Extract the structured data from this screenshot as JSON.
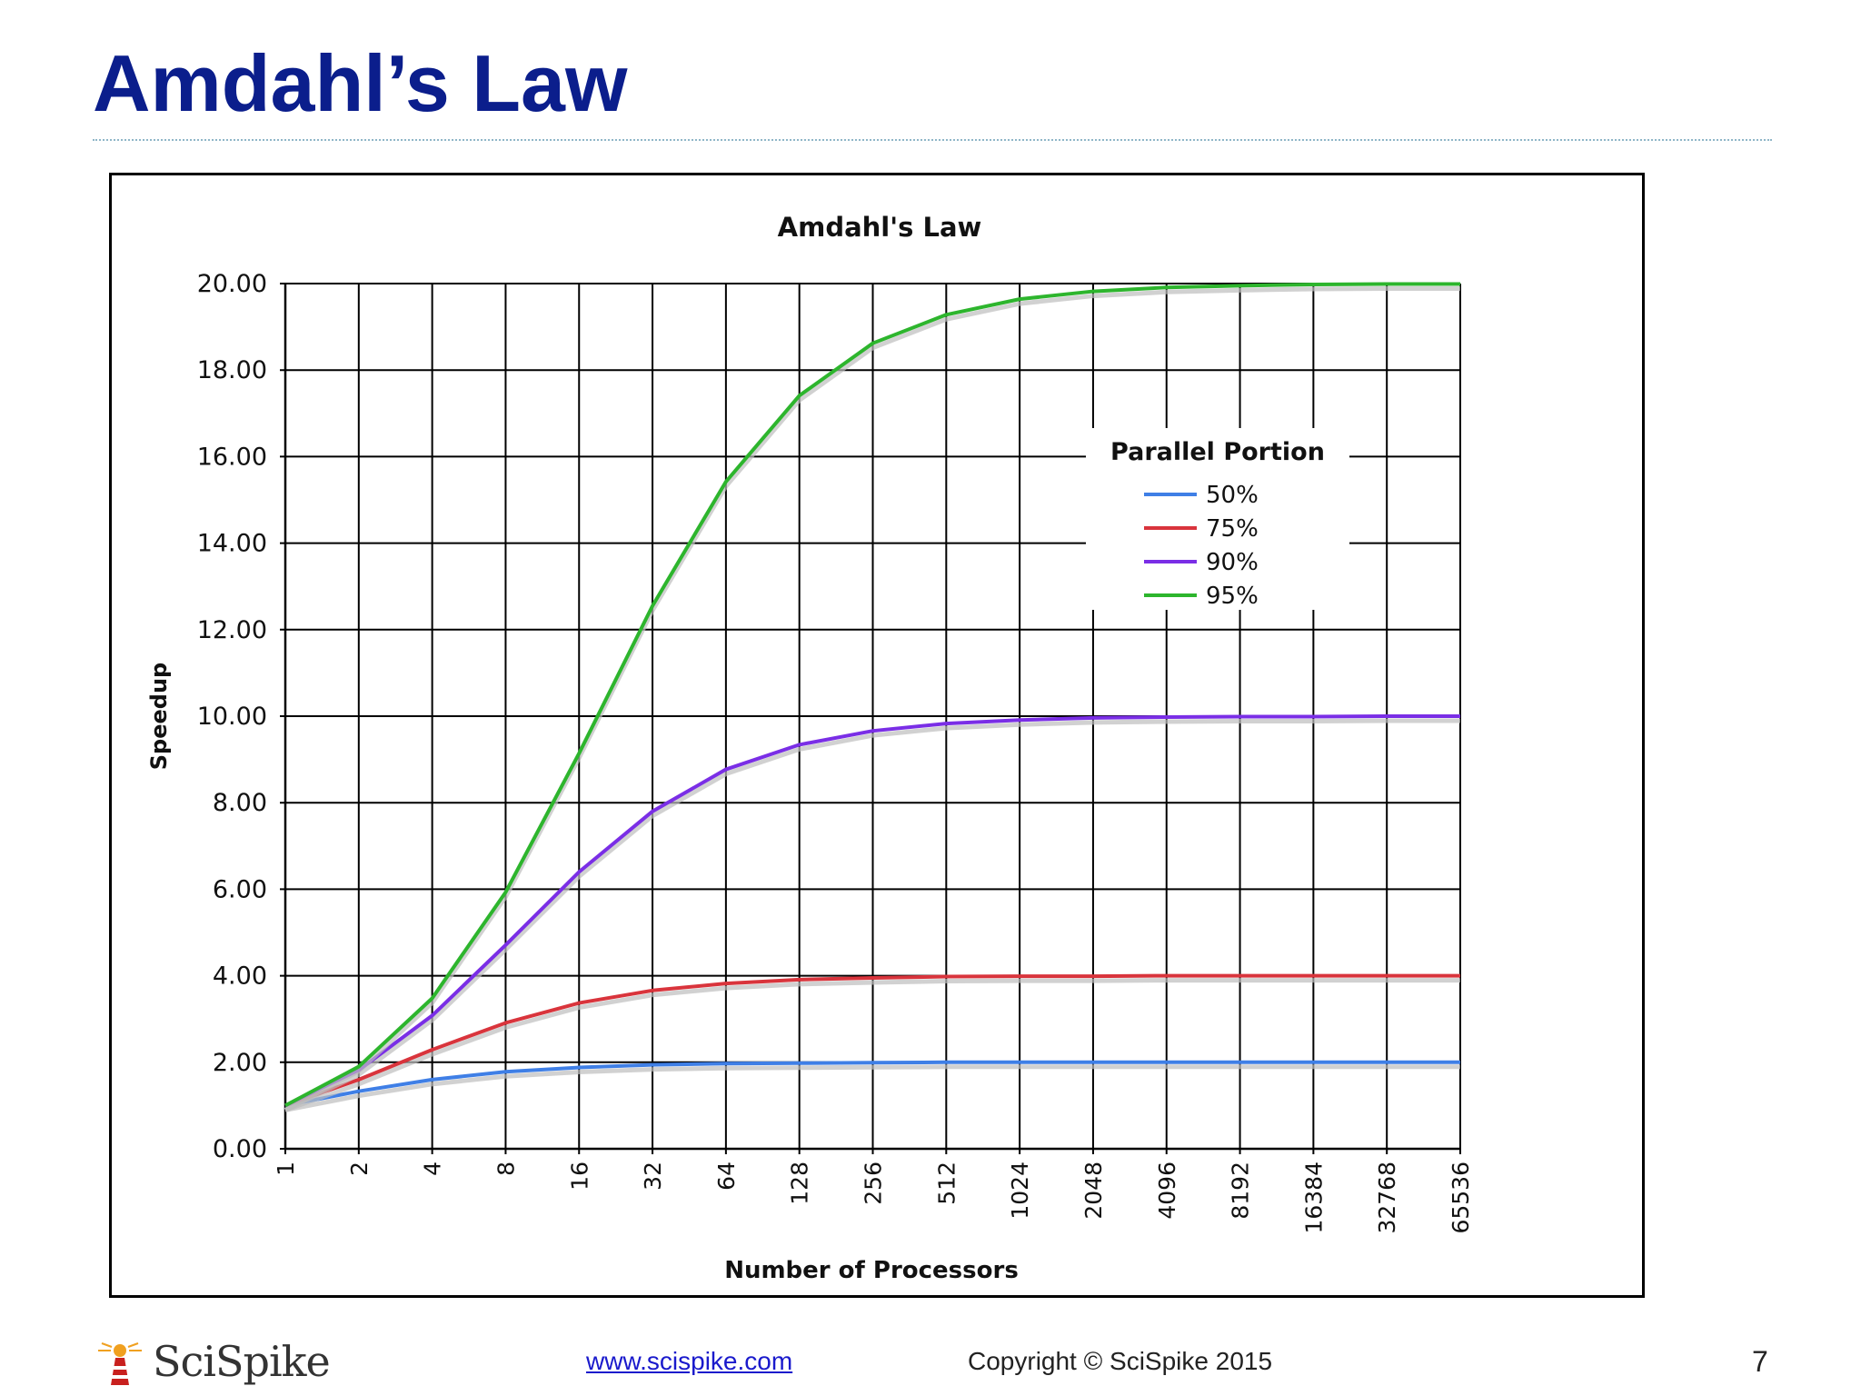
{
  "slide": {
    "title": "Amdahl’s Law",
    "footer": {
      "logo_text": "SciSpike",
      "url": "www.scispike.com",
      "copyright": "Copyright © SciSpike 2015",
      "page_number": "7"
    }
  },
  "chart_data": {
    "type": "line",
    "title": "Amdahl's Law",
    "xlabel": "Number of Processors",
    "ylabel": "Speedup",
    "x": [
      "1",
      "2",
      "4",
      "8",
      "16",
      "32",
      "64",
      "128",
      "256",
      "512",
      "1024",
      "2048",
      "4096",
      "8192",
      "16384",
      "32768",
      "65536"
    ],
    "y_ticks": [
      "0.00",
      "2.00",
      "4.00",
      "6.00",
      "8.00",
      "10.00",
      "12.00",
      "14.00",
      "16.00",
      "18.00",
      "20.00"
    ],
    "ylim": [
      0,
      20
    ],
    "grid": true,
    "x_scale": "log2",
    "legend": {
      "title": "Parallel Portion",
      "placement": "right"
    },
    "series": [
      {
        "name": "50%",
        "color": "#3f7fe6",
        "values": [
          1.0,
          1.33,
          1.6,
          1.78,
          1.88,
          1.94,
          1.97,
          1.98,
          1.99,
          2.0,
          2.0,
          2.0,
          2.0,
          2.0,
          2.0,
          2.0,
          2.0
        ]
      },
      {
        "name": "75%",
        "color": "#d9343c",
        "values": [
          1.0,
          1.6,
          2.29,
          2.91,
          3.37,
          3.66,
          3.82,
          3.91,
          3.95,
          3.98,
          3.99,
          3.99,
          4.0,
          4.0,
          4.0,
          4.0,
          4.0
        ]
      },
      {
        "name": "90%",
        "color": "#7a2ee6",
        "values": [
          1.0,
          1.82,
          3.08,
          4.71,
          6.4,
          7.8,
          8.77,
          9.34,
          9.66,
          9.83,
          9.91,
          9.96,
          9.98,
          9.99,
          9.99,
          10.0,
          10.0
        ]
      },
      {
        "name": "95%",
        "color": "#2db52d",
        "values": [
          1.0,
          1.9,
          3.48,
          5.93,
          9.14,
          12.55,
          15.42,
          17.41,
          18.62,
          19.28,
          19.64,
          19.82,
          19.91,
          19.95,
          19.98,
          19.99,
          19.99
        ]
      }
    ]
  }
}
